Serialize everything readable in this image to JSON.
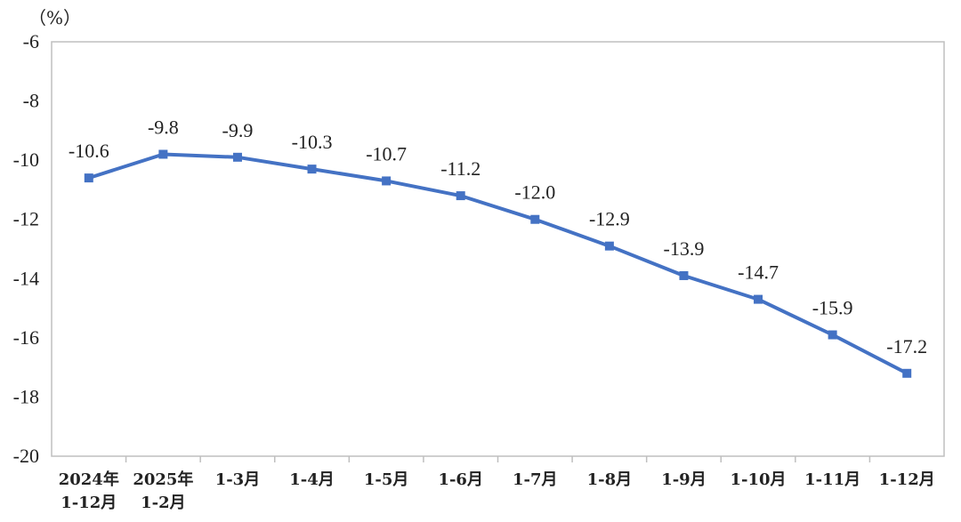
{
  "chart_data": {
    "type": "line",
    "y_unit": "（%）",
    "categories": [
      [
        "2024年",
        "1-12月"
      ],
      [
        "2025年",
        "1-2月"
      ],
      [
        "1-3月"
      ],
      [
        "1-4月"
      ],
      [
        "1-5月"
      ],
      [
        "1-6月"
      ],
      [
        "1-7月"
      ],
      [
        "1-8月"
      ],
      [
        "1-9月"
      ],
      [
        "1-10月"
      ],
      [
        "1-11月"
      ],
      [
        "1-12月"
      ]
    ],
    "series": [
      {
        "values": [
          -10.6,
          -9.8,
          -9.9,
          -10.3,
          -10.7,
          -11.2,
          -12.0,
          -12.9,
          -13.9,
          -14.7,
          -15.9,
          -17.2
        ],
        "labels": [
          "-10.6",
          "-9.8",
          "-9.9",
          "-10.3",
          "-10.7",
          "-11.2",
          "-12.0",
          "-12.9",
          "-13.9",
          "-14.7",
          "-15.9",
          "-17.2"
        ],
        "color": "#4472C4"
      }
    ],
    "ylim": [
      -20,
      -6
    ],
    "yticks": [
      -6,
      -8,
      -10,
      -12,
      -14,
      -16,
      -18,
      -20
    ],
    "grid": false,
    "legend": "none"
  }
}
